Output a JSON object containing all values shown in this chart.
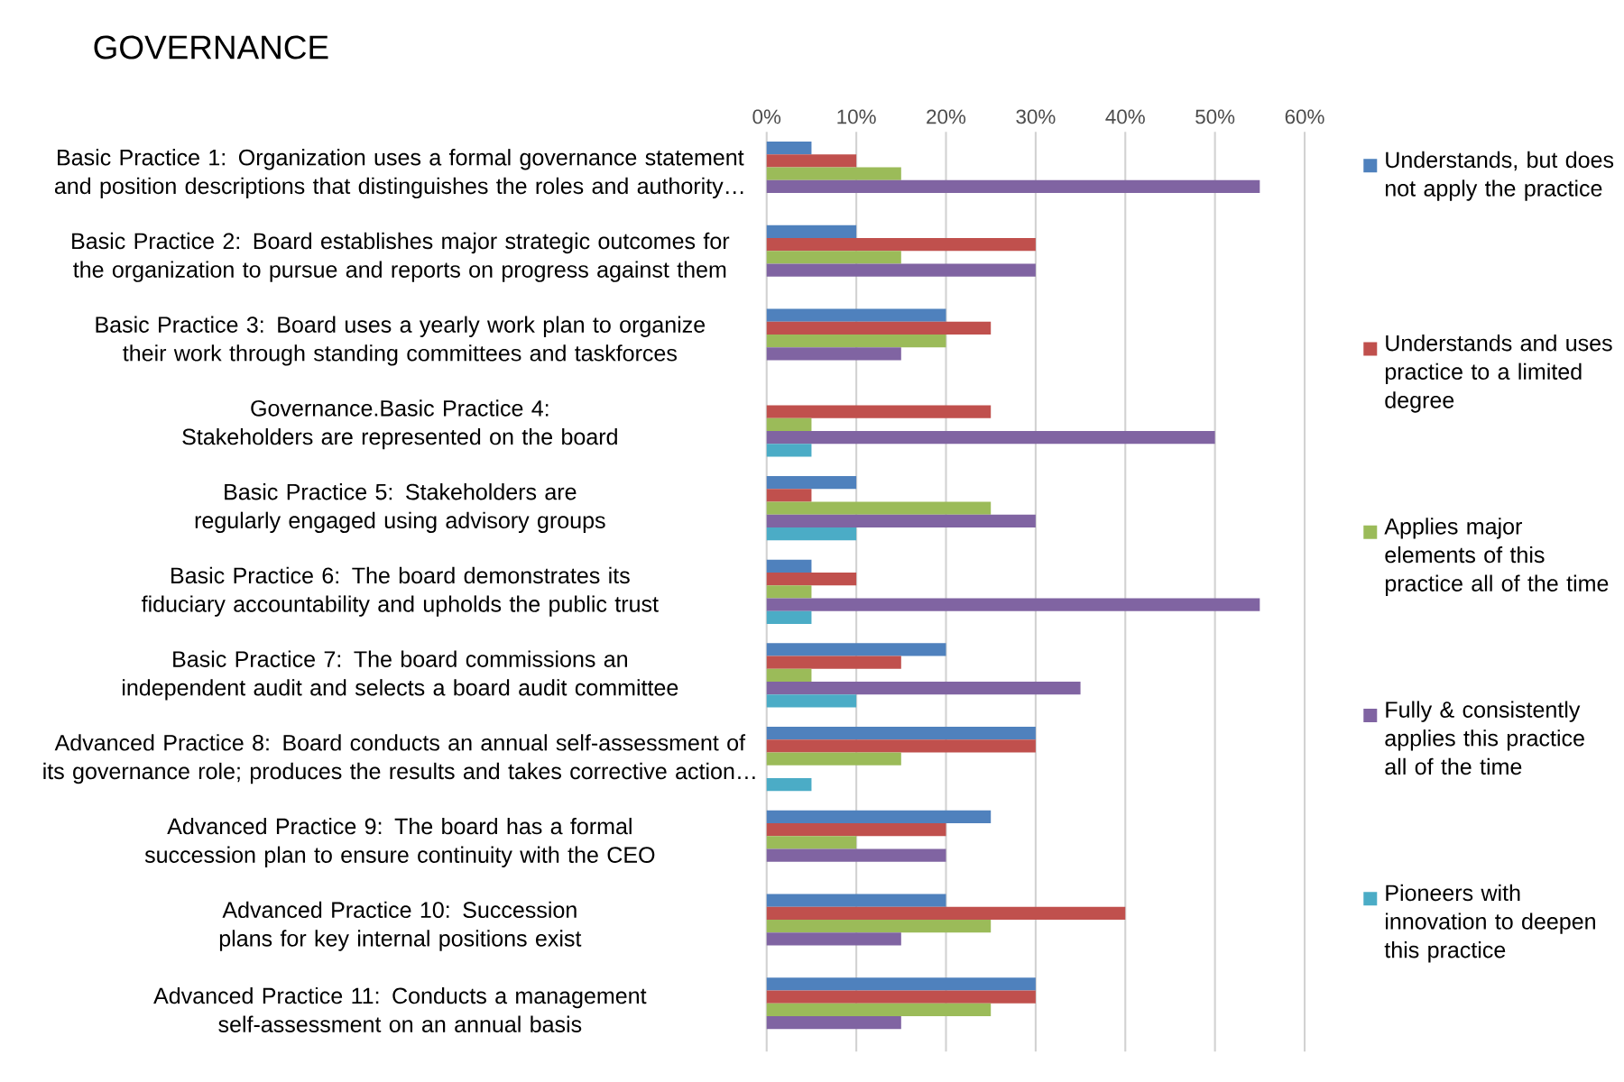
{
  "chart_data": {
    "type": "bar",
    "orientation": "horizontal",
    "title": "GOVERNANCE",
    "categories": [
      "Basic Practice 1:  Organization uses a formal governance statement and position descriptions that distinguishes the roles and authority…",
      "Basic Practice 2:  Board establishes major strategic outcomes for the organization to pursue and reports on progress against them",
      "Basic Practice 3:  Board uses a yearly work plan to organize their work through standing committees and taskforces",
      "Governance.Basic Practice 4:  Stakeholders are represented on the board",
      "Basic Practice 5:  Stakeholders are regularly engaged using advisory groups",
      "Basic Practice 6:  The board demonstrates its fiduciary accountability and upholds the public trust",
      "Basic Practice 7:  The board commissions an independent audit and selects a board audit committee",
      "Advanced Practice 8:  Board conducts an annual self-assessment of its governance role; produces the results and takes corrective action…",
      "Advanced Practice 9:  The board has a formal succession plan to ensure continuity with the CEO",
      "Advanced Practice 10:  Succession plans for key internal positions exist",
      "Advanced Practice 11:  Conducts a management self-assessment on an annual basis"
    ],
    "series": [
      {
        "name": "Understands, but does not apply the practice",
        "color": "#4f81bd",
        "values": [
          5,
          10,
          20,
          0,
          10,
          5,
          20,
          30,
          25,
          20,
          30
        ]
      },
      {
        "name": "Understands and uses practice to a limited degree",
        "color": "#c0504d",
        "values": [
          10,
          30,
          25,
          25,
          5,
          10,
          15,
          30,
          20,
          40,
          30
        ]
      },
      {
        "name": "Applies major elements of this practice all of the time",
        "color": "#9bbb59",
        "values": [
          15,
          15,
          20,
          5,
          25,
          5,
          5,
          15,
          10,
          25,
          25
        ]
      },
      {
        "name": "Fully & consistently applies this practice all of the time",
        "color": "#8064a2",
        "values": [
          55,
          30,
          15,
          50,
          30,
          55,
          35,
          0,
          20,
          15,
          15
        ]
      },
      {
        "name": "Pioneers with innovation to deepen this practice",
        "color": "#4bacc6",
        "values": [
          0,
          0,
          0,
          5,
          10,
          5,
          10,
          5,
          0,
          0,
          0
        ]
      }
    ],
    "xlim": [
      0,
      60
    ],
    "xticks": [
      {
        "value": 0,
        "label": "0%"
      },
      {
        "value": 10,
        "label": "10%"
      },
      {
        "value": 20,
        "label": "20%"
      },
      {
        "value": 30,
        "label": "30%"
      },
      {
        "value": 40,
        "label": "40%"
      },
      {
        "value": 50,
        "label": "50%"
      },
      {
        "value": 60,
        "label": "60%"
      }
    ],
    "grid": "x",
    "legend": "right"
  }
}
